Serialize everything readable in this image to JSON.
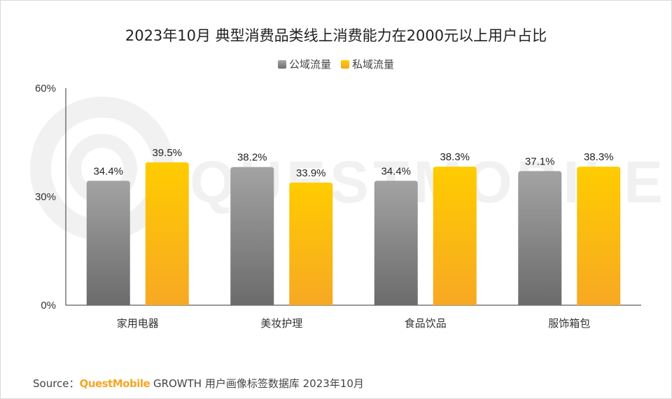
{
  "colors": {
    "private": "#FFC000",
    "public": "#7F7F7F"
  },
  "chart_data": {
    "type": "bar",
    "title": "2023年10月 典型消费品类线上消费能力在2000元以上用户占比",
    "xlabel": "",
    "ylabel": "",
    "ylim": [
      0,
      60
    ],
    "yticks": [
      "0%",
      "30%",
      "60%"
    ],
    "grid": false,
    "legend_position": "top",
    "categories": [
      "家用电器",
      "美妆护理",
      "食品饮品",
      "服饰箱包"
    ],
    "series": [
      {
        "name": "公域流量",
        "values": [
          34.4,
          38.2,
          34.4,
          37.1
        ],
        "labels": [
          "34.4%",
          "38.2%",
          "34.4%",
          "37.1%"
        ]
      },
      {
        "name": "私域流量",
        "values": [
          39.5,
          33.9,
          38.3,
          38.3
        ],
        "labels": [
          "39.5%",
          "33.9%",
          "38.3%",
          "38.3%"
        ]
      }
    ]
  },
  "source": {
    "prefix": "Source：",
    "brand": "QuestMobile",
    "text": "GROWTH 用户画像标签数据库 2023年10月"
  },
  "watermark": {
    "brand": "QUESTMOBILE"
  }
}
